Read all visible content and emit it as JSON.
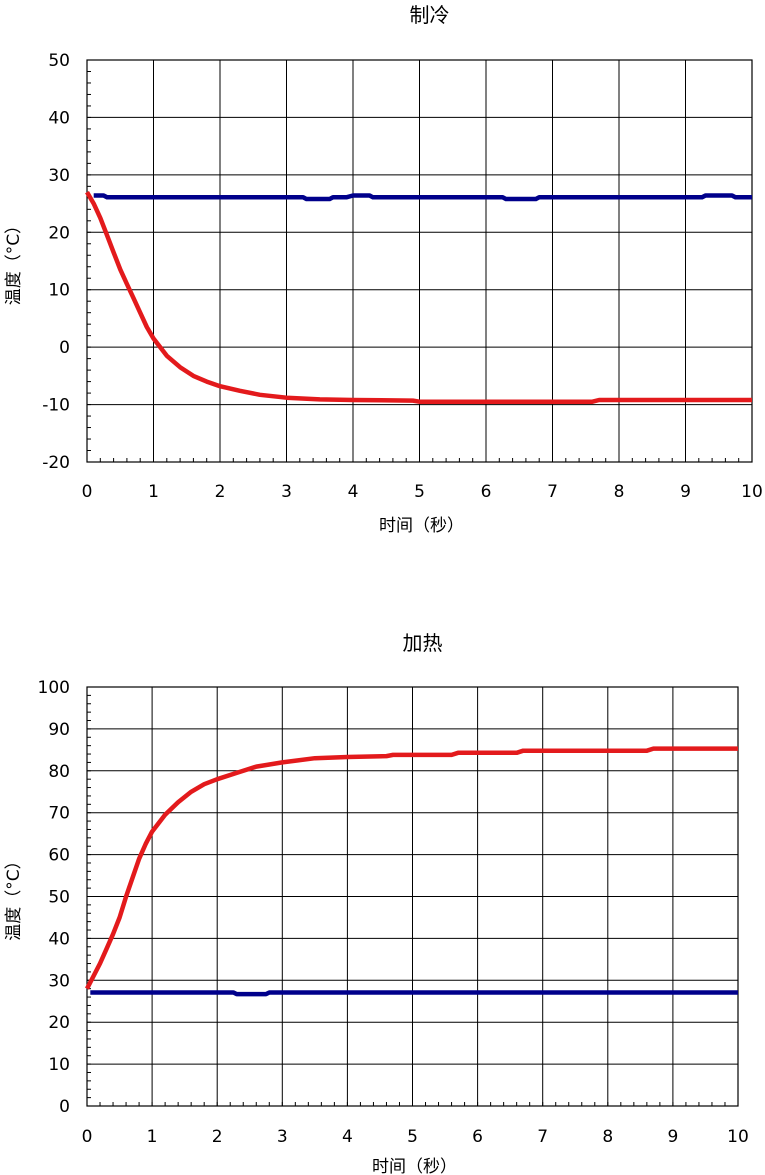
{
  "chart_data": [
    {
      "type": "line",
      "title": "制冷",
      "xlabel": "时间（秒）",
      "ylabel": "温度（°C）",
      "xlim": [
        0,
        10
      ],
      "ylim": [
        -20,
        50
      ],
      "xticks": [
        0,
        1,
        2,
        3,
        4,
        5,
        6,
        7,
        8,
        9,
        10
      ],
      "yticks": [
        -20,
        -10,
        0,
        10,
        20,
        30,
        40,
        50
      ],
      "xtick_labels": [
        "0",
        "1",
        "2",
        "3",
        "4",
        "5",
        "6",
        "7",
        "8",
        "9",
        "10"
      ],
      "ytick_labels": [
        "-20",
        "-10",
        "0",
        "10",
        "20",
        "30",
        "40",
        "50"
      ],
      "grid": true,
      "series": [
        {
          "color": "#e31a1c",
          "x": [
            0,
            0.1,
            0.2,
            0.3,
            0.4,
            0.5,
            0.6,
            0.7,
            0.8,
            0.9,
            1.0,
            1.2,
            1.4,
            1.6,
            1.8,
            2.0,
            2.3,
            2.6,
            3.0,
            3.5,
            4.0,
            4.9,
            5.0,
            7.6,
            7.7,
            10.0
          ],
          "y": [
            27,
            25,
            22.5,
            19.5,
            16.5,
            13.5,
            11,
            8.5,
            6,
            3.5,
            1.5,
            -1.5,
            -3.5,
            -5,
            -6,
            -6.8,
            -7.6,
            -8.3,
            -8.8,
            -9.1,
            -9.2,
            -9.3,
            -9.5,
            -9.5,
            -9.2,
            -9.2
          ]
        },
        {
          "color": "#00008b",
          "x": [
            0.1,
            0.25,
            0.3,
            3.25,
            3.3,
            3.65,
            3.7,
            3.9,
            4.0,
            4.25,
            4.3,
            6.25,
            6.3,
            6.75,
            6.8,
            9.25,
            9.3,
            9.7,
            9.75,
            10.0
          ],
          "y": [
            26.4,
            26.4,
            26.1,
            26.1,
            25.8,
            25.8,
            26.1,
            26.1,
            26.4,
            26.4,
            26.1,
            26.1,
            25.8,
            25.8,
            26.1,
            26.1,
            26.4,
            26.4,
            26.1,
            26.1
          ]
        }
      ]
    },
    {
      "type": "line",
      "title": "加热",
      "xlabel": "时间（秒）",
      "ylabel": "温度（°C）",
      "xlim": [
        0,
        10
      ],
      "ylim": [
        0,
        100
      ],
      "xticks": [
        0,
        1,
        2,
        3,
        4,
        5,
        6,
        7,
        8,
        9,
        10
      ],
      "yticks": [
        0,
        10,
        20,
        30,
        40,
        50,
        60,
        70,
        80,
        90,
        100
      ],
      "xtick_labels": [
        "0",
        "1",
        "2",
        "3",
        "4",
        "5",
        "6",
        "7",
        "8",
        "9",
        "10"
      ],
      "ytick_labels": [
        "0",
        "10",
        "20",
        "30",
        "40",
        "50",
        "60",
        "70",
        "80",
        "90",
        "100"
      ],
      "grid": true,
      "series": [
        {
          "color": "#e31a1c",
          "x": [
            0,
            0.1,
            0.2,
            0.3,
            0.4,
            0.5,
            0.6,
            0.7,
            0.8,
            0.9,
            1.0,
            1.2,
            1.4,
            1.6,
            1.8,
            2.0,
            2.3,
            2.6,
            3.0,
            3.5,
            4.0,
            4.6,
            4.7,
            5.6,
            5.7,
            6.6,
            6.7,
            8.6,
            8.7,
            10.0
          ],
          "y": [
            28,
            31,
            34,
            37.5,
            41,
            45,
            50,
            54.5,
            59,
            62.5,
            65.5,
            69.5,
            72.5,
            75,
            76.8,
            78,
            79.5,
            81,
            82,
            83,
            83.3,
            83.5,
            83.8,
            83.8,
            84.3,
            84.3,
            84.8,
            84.8,
            85.3,
            85.3
          ]
        },
        {
          "color": "#00008b",
          "x": [
            0.05,
            2.25,
            2.3,
            2.75,
            2.8,
            10.0
          ],
          "y": [
            27.1,
            27.1,
            26.7,
            26.7,
            27.1,
            27.1
          ]
        }
      ]
    }
  ]
}
